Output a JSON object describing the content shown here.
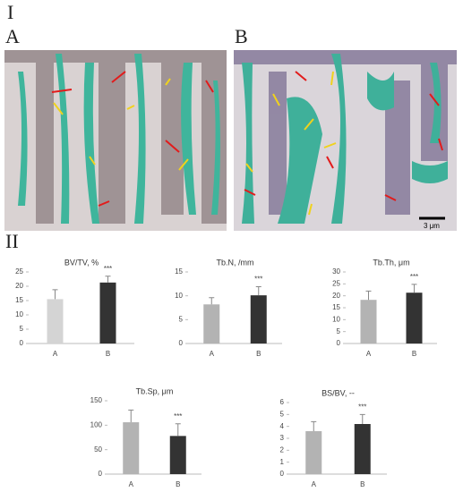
{
  "panel_labels": {
    "section_1": "I",
    "image_a": "A",
    "image_b": "B",
    "section_2": "II",
    "scale_bar": "3 μm"
  },
  "chart_data": [
    {
      "type": "bar",
      "title": "BV/TV, %",
      "categories": [
        "A",
        "B"
      ],
      "values": [
        15.5,
        21.3
      ],
      "errors": [
        3.3,
        2.2
      ],
      "value_annotations": [
        null,
        "***"
      ],
      "colors": [
        "#d4d4d4",
        "#333333"
      ],
      "ylim": [
        0,
        25
      ],
      "yticks": [
        0,
        5,
        10,
        15,
        20,
        25
      ]
    },
    {
      "type": "bar",
      "title": "Tb.N, /mm",
      "categories": [
        "A",
        "B"
      ],
      "values": [
        8.2,
        10.1
      ],
      "errors": [
        1.4,
        1.8
      ],
      "value_annotations": [
        null,
        "***"
      ],
      "colors": [
        "#b3b3b3",
        "#333333"
      ],
      "ylim": [
        0,
        15
      ],
      "yticks": [
        0,
        5,
        10,
        15
      ]
    },
    {
      "type": "bar",
      "title": "Tb.Th, μm",
      "categories": [
        "A",
        "B"
      ],
      "values": [
        18.3,
        21.3
      ],
      "errors": [
        3.7,
        3.5
      ],
      "value_annotations": [
        null,
        "***"
      ],
      "colors": [
        "#b3b3b3",
        "#333333"
      ],
      "ylim": [
        0,
        30
      ],
      "yticks": [
        0,
        5,
        10,
        15,
        20,
        25,
        30
      ]
    },
    {
      "type": "bar",
      "title": "Tb.Sp, μm",
      "categories": [
        "A",
        "B"
      ],
      "values": [
        106,
        78
      ],
      "errors": [
        25,
        25
      ],
      "value_annotations": [
        null,
        "***"
      ],
      "colors": [
        "#b3b3b3",
        "#333333"
      ],
      "ylim": [
        0,
        150
      ],
      "yticks": [
        0,
        50,
        100,
        150
      ]
    },
    {
      "type": "bar",
      "title": "BS/BV, --",
      "categories": [
        "A",
        "B"
      ],
      "values": [
        3.6,
        4.2
      ],
      "errors": [
        0.8,
        0.8
      ],
      "value_annotations": [
        null,
        "***"
      ],
      "colors": [
        "#b3b3b3",
        "#333333"
      ],
      "ylim": [
        0,
        6
      ],
      "yticks": [
        0,
        1,
        2,
        3,
        4,
        5,
        6
      ]
    }
  ]
}
